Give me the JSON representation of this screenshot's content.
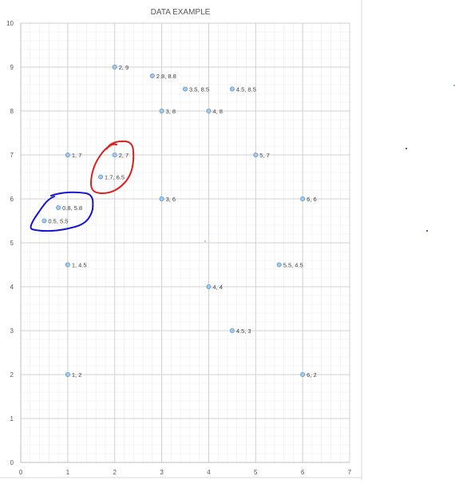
{
  "chart_data": {
    "type": "scatter",
    "title": "DATA EXAMPLE",
    "xlabel": "",
    "ylabel": "",
    "xlim": [
      0,
      7
    ],
    "ylim": [
      0,
      10
    ],
    "x_ticks": [
      0,
      1,
      2,
      3,
      4,
      5,
      6,
      7
    ],
    "y_ticks": [
      0,
      1,
      2,
      3,
      4,
      5,
      6,
      7,
      8,
      9,
      10
    ],
    "grid": true,
    "minor_grid": true,
    "legend": "none",
    "colors": {
      "point_fill": "#a9c7e8",
      "point_stroke": "#5b9bd5",
      "major_grid": "#d0d0d0",
      "minor_grid": "#ececec",
      "axis_text": "#595959",
      "red_annotation": "#e00000",
      "blue_annotation": "#0000d0"
    },
    "series": [
      {
        "points": [
          {
            "x": 2,
            "y": 9,
            "label": "2, 9"
          },
          {
            "x": 2.8,
            "y": 8.8,
            "label": "2.8, 8.8"
          },
          {
            "x": 3.5,
            "y": 8.5,
            "label": "3.5, 8.5"
          },
          {
            "x": 4.5,
            "y": 8.5,
            "label": "4.5, 8.5"
          },
          {
            "x": 3,
            "y": 8,
            "label": "3, 8"
          },
          {
            "x": 4,
            "y": 8,
            "label": "4, 8"
          },
          {
            "x": 1,
            "y": 7,
            "label": "1, 7"
          },
          {
            "x": 2,
            "y": 7,
            "label": "2, 7"
          },
          {
            "x": 5,
            "y": 7,
            "label": "5, 7"
          },
          {
            "x": 1.7,
            "y": 6.5,
            "label": "1.7, 6.5"
          },
          {
            "x": 3,
            "y": 6,
            "label": "3, 6"
          },
          {
            "x": 6,
            "y": 6,
            "label": "6, 6"
          },
          {
            "x": 0.8,
            "y": 5.8,
            "label": "0.8, 5.8"
          },
          {
            "x": 0.5,
            "y": 5.5,
            "label": "0.5, 5.5"
          },
          {
            "x": 1,
            "y": 4.5,
            "label": "1, 4.5"
          },
          {
            "x": 5.5,
            "y": 4.5,
            "label": "5.5, 4.5"
          },
          {
            "x": 4,
            "y": 4,
            "label": "4, 4"
          },
          {
            "x": 4.5,
            "y": 3,
            "label": "4.5, 3"
          },
          {
            "x": 1,
            "y": 2,
            "label": "1, 2"
          },
          {
            "x": 6,
            "y": 2,
            "label": "6, 2"
          }
        ]
      }
    ],
    "annotations": [
      {
        "type": "hand-drawn-loop",
        "color": "red",
        "encloses": [
          "2, 7",
          "1.7, 6.5"
        ]
      },
      {
        "type": "hand-drawn-loop",
        "color": "blue",
        "encloses": [
          "0.8, 5.8",
          "0.5, 5.5"
        ]
      }
    ]
  }
}
